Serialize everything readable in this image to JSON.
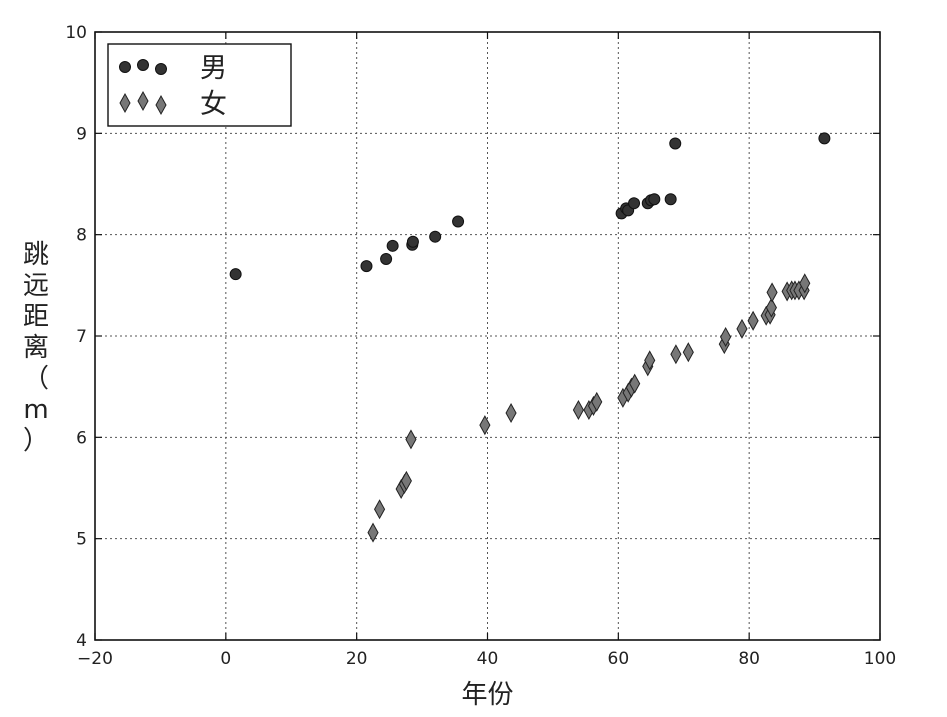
{
  "chart_data": {
    "type": "scatter",
    "xlabel": "年份",
    "ylabel_chars": [
      "跳",
      "远",
      "距",
      "离",
      "（",
      "m",
      "）"
    ],
    "xlim": [
      -20,
      100
    ],
    "ylim": [
      4,
      10
    ],
    "xticks": [
      -20,
      0,
      20,
      40,
      60,
      80,
      100
    ],
    "yticks": [
      4,
      5,
      6,
      7,
      8,
      9,
      10
    ],
    "xtick_labels": [
      "−20",
      "0",
      "20",
      "40",
      "60",
      "80",
      "100"
    ],
    "ytick_labels": [
      "4",
      "5",
      "6",
      "7",
      "8",
      "9",
      "10"
    ],
    "grid": true,
    "legend_position": "top-left",
    "series": [
      {
        "name": "男",
        "marker": "circle",
        "color": "#333333",
        "points": [
          [
            1.5,
            7.61
          ],
          [
            21.5,
            7.69
          ],
          [
            24.5,
            7.76
          ],
          [
            25.5,
            7.89
          ],
          [
            28.5,
            7.9
          ],
          [
            28.6,
            7.93
          ],
          [
            32,
            7.98
          ],
          [
            35.5,
            8.13
          ],
          [
            60.5,
            8.21
          ],
          [
            61.2,
            8.26
          ],
          [
            61.5,
            8.24
          ],
          [
            62.4,
            8.31
          ],
          [
            64.5,
            8.31
          ],
          [
            65,
            8.34
          ],
          [
            65.5,
            8.35
          ],
          [
            68,
            8.35
          ],
          [
            68.7,
            8.9
          ],
          [
            91.5,
            8.95
          ]
        ]
      },
      {
        "name": "女",
        "marker": "diamond",
        "color": "#777777",
        "points": [
          [
            22.5,
            5.06
          ],
          [
            23.5,
            5.29
          ],
          [
            26.8,
            5.49
          ],
          [
            27.3,
            5.54
          ],
          [
            27.6,
            5.57
          ],
          [
            28.3,
            5.98
          ],
          [
            39.6,
            6.12
          ],
          [
            43.6,
            6.24
          ],
          [
            53.9,
            6.27
          ],
          [
            55.5,
            6.27
          ],
          [
            56.2,
            6.31
          ],
          [
            56.7,
            6.35
          ],
          [
            60.7,
            6.39
          ],
          [
            61.5,
            6.44
          ],
          [
            62,
            6.49
          ],
          [
            62.5,
            6.53
          ],
          [
            64.5,
            6.7
          ],
          [
            64.8,
            6.76
          ],
          [
            68.8,
            6.82
          ],
          [
            70.7,
            6.84
          ],
          [
            76.2,
            6.92
          ],
          [
            76.4,
            6.99
          ],
          [
            78.9,
            7.07
          ],
          [
            80.6,
            7.15
          ],
          [
            82.6,
            7.2
          ],
          [
            83.2,
            7.21
          ],
          [
            83.4,
            7.28
          ],
          [
            83.5,
            7.43
          ],
          [
            85.8,
            7.44
          ],
          [
            86.5,
            7.45
          ],
          [
            87,
            7.45
          ],
          [
            87.6,
            7.45
          ],
          [
            88.4,
            7.45
          ],
          [
            88.5,
            7.52
          ]
        ]
      }
    ]
  }
}
